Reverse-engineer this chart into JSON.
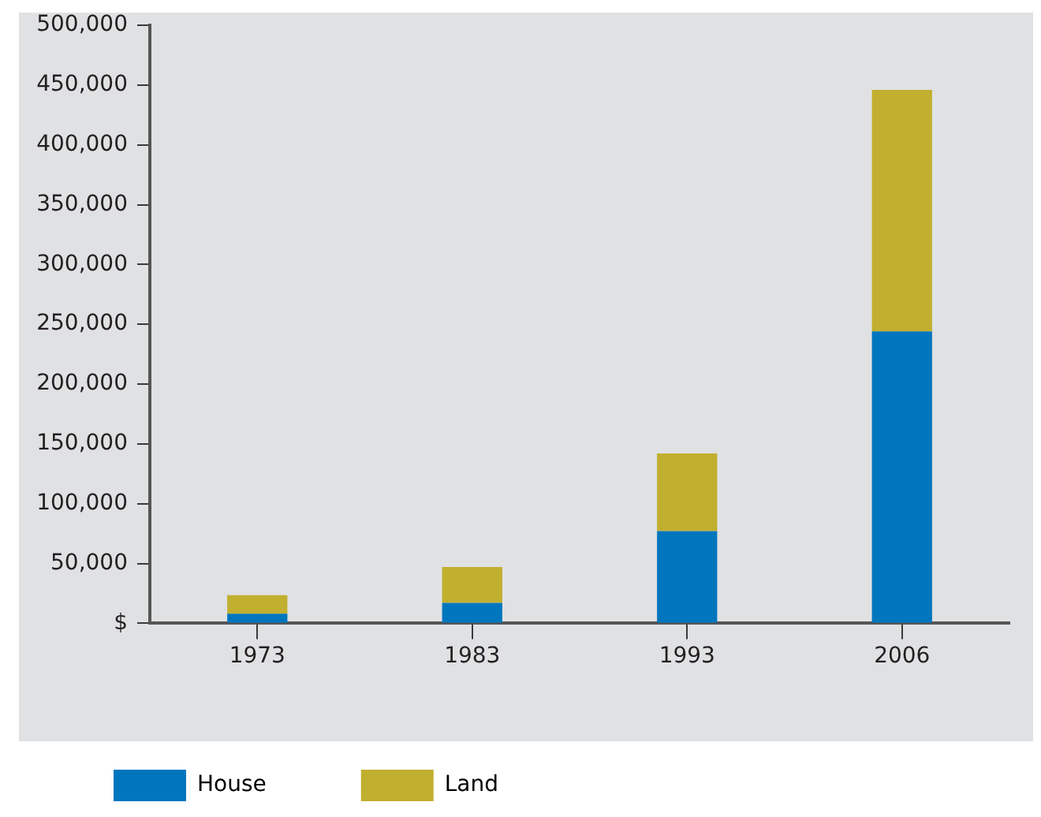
{
  "chart_data": {
    "type": "bar",
    "stacked": true,
    "categories": [
      "1973",
      "1983",
      "1993",
      "2006"
    ],
    "series": [
      {
        "name": "House",
        "color": "#0076be",
        "values": [
          8000,
          17000,
          77000,
          244000
        ]
      },
      {
        "name": "Land",
        "color": "#c1af2f",
        "values": [
          15500,
          30000,
          65000,
          202000
        ]
      }
    ],
    "ylim": [
      0,
      500000
    ],
    "yticks": [
      {
        "value": 0,
        "label": "$"
      },
      {
        "value": 50000,
        "label": "50,000"
      },
      {
        "value": 100000,
        "label": "100,000"
      },
      {
        "value": 150000,
        "label": "150,000"
      },
      {
        "value": 200000,
        "label": "200,000"
      },
      {
        "value": 250000,
        "label": "250,000"
      },
      {
        "value": 300000,
        "label": "300,000"
      },
      {
        "value": 350000,
        "label": "350,000"
      },
      {
        "value": 400000,
        "label": "400,000"
      },
      {
        "value": 450000,
        "label": "450,000"
      },
      {
        "value": 500000,
        "label": "500,000"
      }
    ],
    "legend": "bottom"
  }
}
